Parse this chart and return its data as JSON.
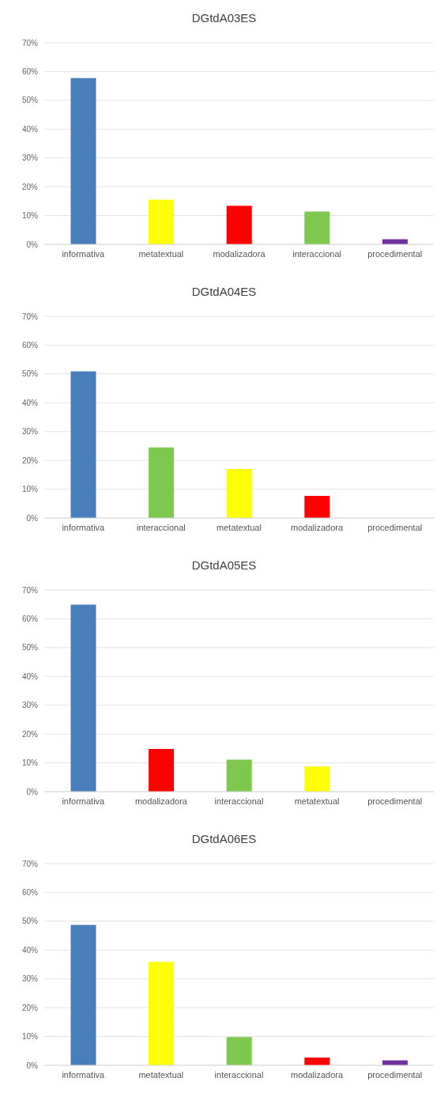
{
  "chart_data": [
    {
      "type": "bar",
      "title": "DGtdA03ES",
      "categories": [
        "informativa",
        "metatextual",
        "modalizadora",
        "interaccional",
        "procedimental"
      ],
      "values": [
        57.7,
        15.5,
        13.4,
        11.4,
        1.8
      ],
      "colors": [
        "#4a7ebb",
        "#ffff00",
        "#ff0000",
        "#7ec850",
        "#7030a0"
      ],
      "ylim": [
        0,
        70
      ],
      "yticks": [
        {
          "value": 0,
          "label": "0%"
        },
        {
          "value": 10,
          "label": "10%"
        },
        {
          "value": 20,
          "label": "20%"
        },
        {
          "value": 30,
          "label": "30%"
        },
        {
          "value": 40,
          "label": "40%"
        },
        {
          "value": 50,
          "label": "50%"
        },
        {
          "value": 60,
          "label": "60%"
        },
        {
          "value": 70,
          "label": "70%"
        }
      ],
      "grid": "y"
    },
    {
      "type": "bar",
      "title": "DGtdA04ES",
      "categories": [
        "informativa",
        "interaccional",
        "metatextual",
        "modalizadora",
        "procedimental"
      ],
      "values": [
        50.9,
        24.5,
        17.0,
        7.7,
        0
      ],
      "colors": [
        "#4a7ebb",
        "#7ec850",
        "#ffff00",
        "#ff0000",
        "#7030a0"
      ],
      "ylim": [
        0,
        70
      ],
      "yticks": [
        {
          "value": 0,
          "label": "0%"
        },
        {
          "value": 10,
          "label": "10%"
        },
        {
          "value": 20,
          "label": "20%"
        },
        {
          "value": 30,
          "label": "30%"
        },
        {
          "value": 40,
          "label": "40%"
        },
        {
          "value": 50,
          "label": "50%"
        },
        {
          "value": 60,
          "label": "60%"
        },
        {
          "value": 70,
          "label": "70%"
        }
      ],
      "grid": "y"
    },
    {
      "type": "bar",
      "title": "DGtdA05ES",
      "categories": [
        "informativa",
        "modalizadora",
        "interaccional",
        "metatextual",
        "procedimental"
      ],
      "values": [
        64.9,
        14.8,
        11.1,
        8.7,
        0
      ],
      "colors": [
        "#4a7ebb",
        "#ff0000",
        "#7ec850",
        "#ffff00",
        "#7030a0"
      ],
      "ylim": [
        0,
        70
      ],
      "yticks": [
        {
          "value": 0,
          "label": "0%"
        },
        {
          "value": 10,
          "label": "10%"
        },
        {
          "value": 20,
          "label": "20%"
        },
        {
          "value": 30,
          "label": "30%"
        },
        {
          "value": 40,
          "label": "40%"
        },
        {
          "value": 50,
          "label": "50%"
        },
        {
          "value": 60,
          "label": "60%"
        },
        {
          "value": 70,
          "label": "70%"
        }
      ],
      "grid": "y"
    },
    {
      "type": "bar",
      "title": "DGtdA06ES",
      "categories": [
        "informativa",
        "metatextual",
        "interaccional",
        "modalizadora",
        "procedimental"
      ],
      "values": [
        48.7,
        35.9,
        9.8,
        2.7,
        1.7
      ],
      "colors": [
        "#4a7ebb",
        "#ffff00",
        "#7ec850",
        "#ff0000",
        "#7030a0"
      ],
      "ylim": [
        0,
        70
      ],
      "yticks": [
        {
          "value": 0,
          "label": "0%"
        },
        {
          "value": 10,
          "label": "10%"
        },
        {
          "value": 20,
          "label": "20%"
        },
        {
          "value": 30,
          "label": "30%"
        },
        {
          "value": 40,
          "label": "40%"
        },
        {
          "value": 50,
          "label": "50%"
        },
        {
          "value": 60,
          "label": "60%"
        },
        {
          "value": 70,
          "label": "70%"
        }
      ],
      "grid": "y"
    }
  ]
}
